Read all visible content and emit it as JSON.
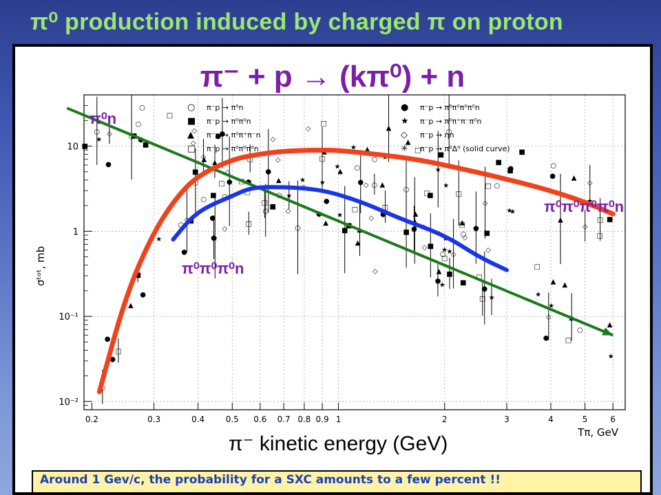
{
  "slide": {
    "title": "π⁰ production induced by charged π on proton",
    "reaction": "π⁻ + p → (kπ⁰) + n",
    "x_caption": "π⁻ kinetic energy (GeV)",
    "note": "Around 1 Gev/c, the probability for a SXC amounts to a few percent !!"
  },
  "colors": {
    "title": "#9be870",
    "reaction": "#7a1fa6",
    "note_text": "#1a3fb5",
    "note_bg": "#fff3a8",
    "green": "#1a7a1a",
    "red": "#f0421c",
    "blue": "#1a35e8"
  },
  "chart_data": {
    "type": "scatter",
    "xscale": "log",
    "yscale": "log",
    "xlim": [
      0.19,
      6.5
    ],
    "ylim": [
      0.008,
      40
    ],
    "ylabel": "σᵗᵒᵗ, mb",
    "xlabel": "Tπ, GeV",
    "x_ticks": [
      {
        "value": 0.2,
        "label": "0.2"
      },
      {
        "value": 0.3,
        "label": "0.3"
      },
      {
        "value": 0.4,
        "label": "0.4"
      },
      {
        "value": 0.5,
        "label": "0.5"
      },
      {
        "value": 0.6,
        "label": "0.6"
      },
      {
        "value": 0.7,
        "label": "0.7"
      },
      {
        "value": 0.8,
        "label": "0.8"
      },
      {
        "value": 0.9,
        "label": "0.9"
      },
      {
        "value": 1.0,
        "label": "1"
      },
      {
        "value": 2,
        "label": "2"
      },
      {
        "value": 3,
        "label": "3"
      },
      {
        "value": 4,
        "label": "4"
      },
      {
        "value": 5,
        "label": "5"
      },
      {
        "value": 6,
        "label": "6"
      }
    ],
    "y_ticks": [
      {
        "value": 0.01,
        "label": "10⁻²"
      },
      {
        "value": 0.1,
        "label": "10⁻¹"
      },
      {
        "value": 1,
        "label": "1"
      },
      {
        "value": 10,
        "label": "10"
      }
    ],
    "legend": [
      {
        "symbol": "○",
        "text": "π⁻p → π⁰n"
      },
      {
        "symbol": "■",
        "text": "π⁻p → π⁰π⁰n"
      },
      {
        "symbol": "▲",
        "text": "π⁻p → π⁰π⁺π⁻n"
      },
      {
        "symbol": "□",
        "text": "π⁻p → π⁰π⁰π⁰n"
      },
      {
        "symbol": "●",
        "text": "π⁻p → π⁰π⁰π⁰π⁰n"
      },
      {
        "symbol": "★",
        "text": "π⁻p → π⁰π⁺π⁻π⁰n"
      },
      {
        "symbol": "◇",
        "text": "π⁻p → ηn"
      },
      {
        "symbol": "✳",
        "text": "π⁻p → π⁰Δ⁰ (solid curve)"
      }
    ],
    "series": [
      {
        "name": "π⁰n",
        "color": "#1a7a1a",
        "style": "arrow",
        "x": [
          0.17,
          6.0
        ],
        "y": [
          28,
          0.06
        ]
      },
      {
        "name": "π⁰π⁰π⁰π⁰n",
        "color": "#f0421c",
        "style": "thick",
        "x": [
          0.21,
          0.25,
          0.3,
          0.35,
          0.4,
          0.5,
          0.6,
          0.7,
          0.8,
          0.9,
          1.0,
          1.3,
          1.7,
          2.2,
          3.0,
          4.0,
          5.0,
          6.0
        ],
        "y": [
          0.013,
          0.18,
          1.0,
          2.6,
          4.5,
          7.0,
          8.1,
          8.7,
          8.9,
          9.0,
          8.9,
          8.0,
          6.9,
          5.5,
          4.1,
          3.0,
          2.2,
          1.6
        ]
      },
      {
        "name": "π⁰π⁰π⁰n",
        "color": "#1a35e8",
        "style": "thick",
        "x": [
          0.34,
          0.38,
          0.42,
          0.5,
          0.55,
          0.6,
          0.7,
          0.8,
          0.9,
          1.0,
          1.2,
          1.5,
          2.0,
          2.5,
          3.0
        ],
        "y": [
          0.8,
          1.4,
          1.9,
          2.6,
          3.1,
          3.3,
          3.3,
          3.2,
          3.0,
          2.7,
          2.1,
          1.4,
          0.9,
          0.5,
          0.35
        ]
      }
    ],
    "curve_labels": [
      {
        "text": "π⁰n",
        "series": "π⁰n"
      },
      {
        "text": "π⁰π⁰π⁰π⁰n",
        "series": "π⁰π⁰π⁰π⁰n"
      },
      {
        "text": "π⁰π⁰π⁰n",
        "series": "π⁰π⁰π⁰n"
      }
    ]
  }
}
